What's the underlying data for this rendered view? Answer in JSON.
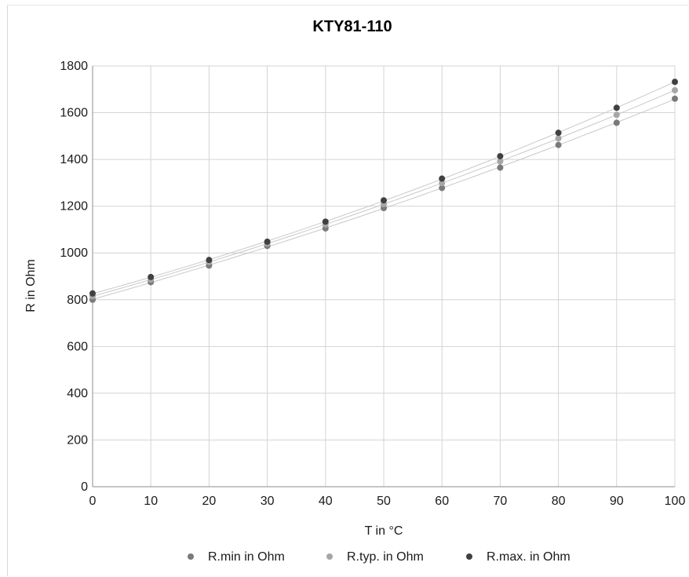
{
  "chart_data": {
    "type": "scatter",
    "title": "KTY81-110",
    "xlabel": "T in °C",
    "ylabel": "R in Ohm",
    "x": [
      0,
      10,
      20,
      30,
      40,
      50,
      60,
      70,
      80,
      90,
      100
    ],
    "xlim": [
      0,
      100
    ],
    "ylim": [
      0,
      1800
    ],
    "xticks": [
      "0",
      "10",
      "20",
      "30",
      "40",
      "50",
      "60",
      "70",
      "80",
      "90",
      "100"
    ],
    "yticks": [
      "0",
      "200",
      "400",
      "600",
      "800",
      "1000",
      "1200",
      "1400",
      "1600",
      "1800"
    ],
    "grid": true,
    "trendlines": true,
    "legend_position": "bottom",
    "series": [
      {
        "name": "R.min in Ohm",
        "color": "#7a7a7a",
        "values": [
          800,
          875,
          946,
          1030,
          1105,
          1192,
          1278,
          1365,
          1462,
          1557,
          1660
        ]
      },
      {
        "name": "R.typ. in Ohm",
        "color": "#a6a6a6",
        "values": [
          815,
          886,
          961,
          1040,
          1122,
          1209,
          1299,
          1392,
          1490,
          1591,
          1696
        ]
      },
      {
        "name": "R.max. in Ohm",
        "color": "#404040",
        "values": [
          827,
          897,
          970,
          1048,
          1134,
          1225,
          1318,
          1414,
          1514,
          1621,
          1732
        ]
      }
    ]
  }
}
